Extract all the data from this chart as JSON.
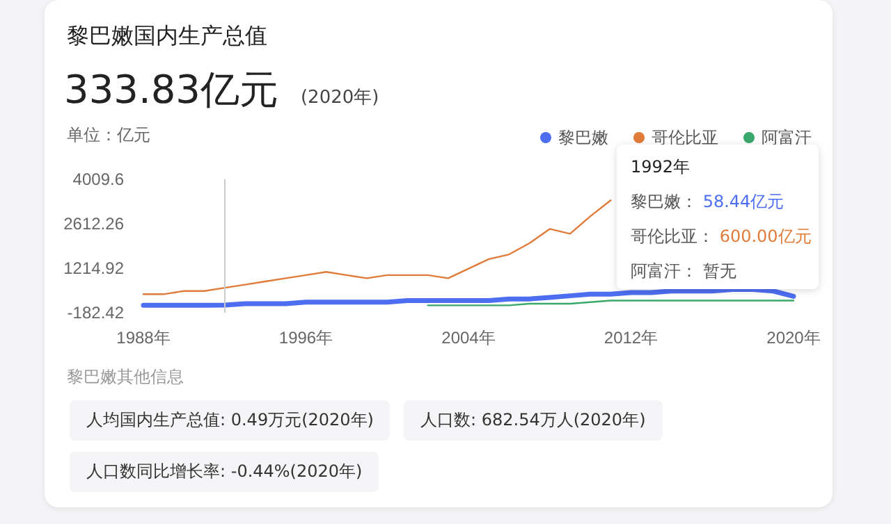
{
  "chart_data": {
    "type": "line",
    "title": "黎巴嫩国内生产总值",
    "subtitle": "333.83亿元",
    "ylabel": "单位：亿元",
    "x": [
      1988,
      1989,
      1990,
      1991,
      1992,
      1993,
      1994,
      1995,
      1996,
      1997,
      1998,
      1999,
      2000,
      2001,
      2002,
      2003,
      2004,
      2005,
      2006,
      2007,
      2008,
      2009,
      2010,
      2011,
      2012,
      2013,
      2014,
      2015,
      2016,
      2017,
      2018,
      2019,
      2020
    ],
    "series": [
      {
        "name": "黎巴嫩",
        "color": "#4e6ef2",
        "values": [
          50,
          50,
          50,
          50,
          58.44,
          100,
          100,
          100,
          150,
          150,
          150,
          150,
          150,
          200,
          200,
          200,
          200,
          200,
          250,
          250,
          300,
          350,
          400,
          400,
          450,
          450,
          500,
          500,
          500,
          550,
          550,
          500,
          333.83
        ]
      },
      {
        "name": "哥伦比亚",
        "color": "#e07b39",
        "values": [
          400,
          400,
          500,
          500,
          600,
          700,
          800,
          900,
          1000,
          1100,
          1000,
          900,
          1000,
          1000,
          1000,
          900,
          1200,
          1500,
          1650,
          2000,
          2450,
          2300,
          2850,
          3350,
          null,
          null,
          null,
          null,
          null,
          null,
          null,
          null,
          null
        ]
      },
      {
        "name": "阿富汗",
        "color": "#3aa86a",
        "values": [
          null,
          null,
          null,
          null,
          null,
          null,
          null,
          null,
          null,
          null,
          null,
          null,
          null,
          null,
          50,
          50,
          50,
          50,
          50,
          100,
          100,
          100,
          150,
          200,
          200,
          200,
          200,
          200,
          200,
          200,
          200,
          200,
          200
        ]
      }
    ],
    "xlim": [
      1988,
      2020
    ],
    "xticks": [
      {
        "value": 1988,
        "label": "1988年"
      },
      {
        "value": 1996,
        "label": "1996年"
      },
      {
        "value": 2004,
        "label": "2004年"
      },
      {
        "value": 2012,
        "label": "2012年"
      },
      {
        "value": 2020,
        "label": "2020年"
      }
    ],
    "ylim": [
      -182.42,
      4009.6
    ],
    "yticks": [
      -182.42,
      1214.92,
      2612.26,
      4009.6
    ],
    "ref_lines": [
      {
        "axis": "x",
        "value": 1992,
        "color": "#cccccc"
      }
    ],
    "annotations": [
      "(2020年)",
      "1992年",
      "黎巴嫩： 58.44亿元",
      "哥伦比亚： 600.00亿元",
      "阿富汗： 暂无",
      "黎巴嫩其他信息",
      "人均国内生产总值: 0.49万元(2020年)",
      "人口数: 682.54万人(2020年)",
      "人口数同比增长率: -0.44%(2020年)"
    ],
    "legend": "top right",
    "marker": "none",
    "grid": false,
    "line_style": "solid"
  }
}
